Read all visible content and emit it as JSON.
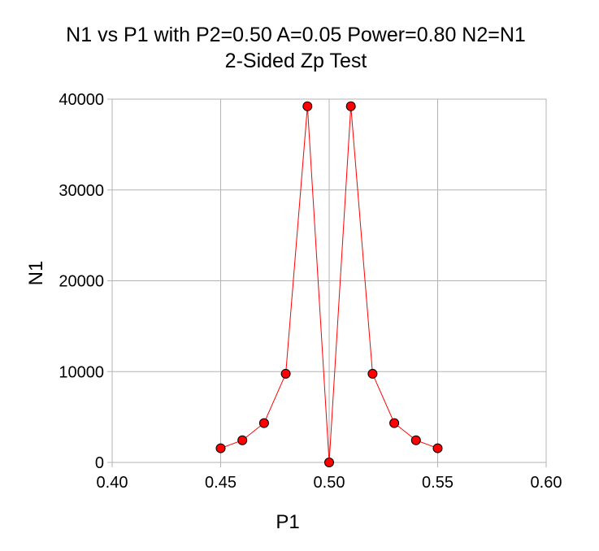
{
  "chart_data": {
    "type": "line",
    "title": "N1 vs P1 with P2=0.50 A=0.05 Power=0.80 N2=N1",
    "subtitle": "2-Sided Zp Test",
    "xlabel": "P1",
    "ylabel": "N1",
    "xlim": [
      0.4,
      0.6
    ],
    "ylim": [
      0,
      40000
    ],
    "xticks": [
      0.4,
      0.45,
      0.5,
      0.55,
      0.6
    ],
    "xtick_labels": [
      "0.40",
      "0.45",
      "0.50",
      "0.55",
      "0.60"
    ],
    "yticks": [
      0,
      10000,
      20000,
      30000,
      40000
    ],
    "ytick_labels": [
      "0",
      "10000",
      "20000",
      "30000",
      "40000"
    ],
    "grid": true,
    "series_color": "#ff0000",
    "marker_stroke": "#000000",
    "grid_color": "#b3b3b3",
    "series": [
      {
        "x": [
          0.45,
          0.46,
          0.47,
          0.48,
          0.49,
          0.5,
          0.51,
          0.52,
          0.53,
          0.54,
          0.55
        ],
        "y": [
          1560,
          2440,
          4330,
          9760,
          39220,
          0,
          39220,
          9760,
          4330,
          2440,
          1560
        ]
      }
    ]
  }
}
